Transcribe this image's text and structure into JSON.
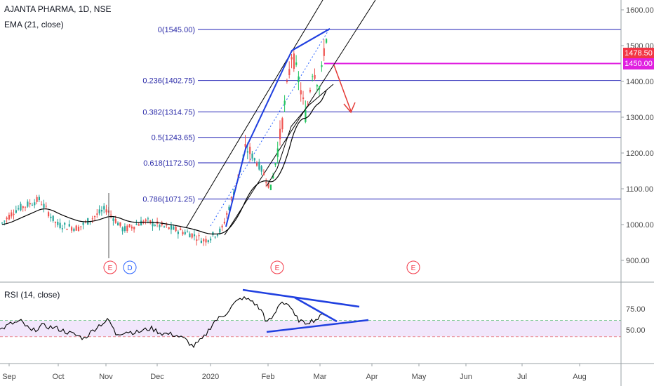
{
  "header": {
    "title": "AJANTA PHARMA, 1D, NSE",
    "indicator": "EMA (21, close)",
    "rsi_label": "RSI (14, close)"
  },
  "price_axis": {
    "ticks": [
      {
        "value": 1600,
        "label": "1600.00"
      },
      {
        "value": 1500,
        "label": "1500.00"
      },
      {
        "value": 1400,
        "label": "1400.00"
      },
      {
        "value": 1300,
        "label": "1300.00"
      },
      {
        "value": 1200,
        "label": "1200.00"
      },
      {
        "value": 1100,
        "label": "1100.00"
      },
      {
        "value": 1000,
        "label": "1000.00"
      },
      {
        "value": 900,
        "label": "900.00"
      }
    ],
    "last_price": {
      "value": 1478.5,
      "label": "1478.50",
      "color": "#f23645"
    },
    "level_marker": {
      "value": 1450,
      "label": "1450.00",
      "color": "#e020e0"
    }
  },
  "rsi_axis": {
    "ticks": [
      {
        "value": 75,
        "label": "75.00"
      },
      {
        "value": 50,
        "label": "50.00"
      }
    ],
    "upper_band": 61,
    "lower_band": 42
  },
  "time_axis": [
    "Sep",
    "Oct",
    "Nov",
    "Dec",
    "2020",
    "Feb",
    "Mar",
    "Apr",
    "May",
    "Jun",
    "Jul",
    "Aug"
  ],
  "fib_levels": [
    {
      "value": 1545.0,
      "label": "0(1545.00)"
    },
    {
      "value": 1402.75,
      "label": "0.236(1402.75)"
    },
    {
      "value": 1314.75,
      "label": "0.382(1314.75)"
    },
    {
      "value": 1243.65,
      "label": "0.5(1243.65)"
    },
    {
      "value": 1172.5,
      "label": "0.618(1172.50)"
    },
    {
      "value": 1071.25,
      "label": "0.786(1071.25)"
    }
  ],
  "events": [
    {
      "label": "E",
      "kind": "earnings",
      "color": "#f23645"
    },
    {
      "label": "D",
      "kind": "dividend",
      "color": "#2962ff"
    },
    {
      "label": "E",
      "kind": "earnings",
      "color": "#f23645"
    },
    {
      "label": "E",
      "kind": "earnings",
      "color": "#f23645"
    }
  ],
  "colors": {
    "up": "#26a69a",
    "up_bright": "#22c55e",
    "down": "#ef5350",
    "fib": "#1e1eb4",
    "ema": "#000000",
    "rsi_band": "#f1e6fb"
  },
  "chart_data": {
    "type": "candlestick",
    "title": "AJANTA PHARMA, 1D, NSE",
    "ylim": [
      855,
      1640
    ],
    "x_range": [
      "Sep",
      "Aug"
    ],
    "price_approx_path": [
      {
        "period": "Sep",
        "close": 1030
      },
      {
        "period": "Oct",
        "close": 1000
      },
      {
        "period": "Nov",
        "close": 1005
      },
      {
        "period": "Dec",
        "close": 985
      },
      {
        "period": "2020",
        "close": 975
      },
      {
        "period": "Feb",
        "close": 1380
      },
      {
        "period": "Mar",
        "close": 1478.5
      }
    ],
    "series": [
      {
        "name": "EMA (21, close)",
        "values": [
          1000,
          995,
          990,
          1000,
          995,
          1290,
          1370
        ]
      },
      {
        "name": "RSI (14, close)",
        "values": [
          55,
          52,
          48,
          45,
          42,
          62,
          60
        ]
      }
    ]
  }
}
